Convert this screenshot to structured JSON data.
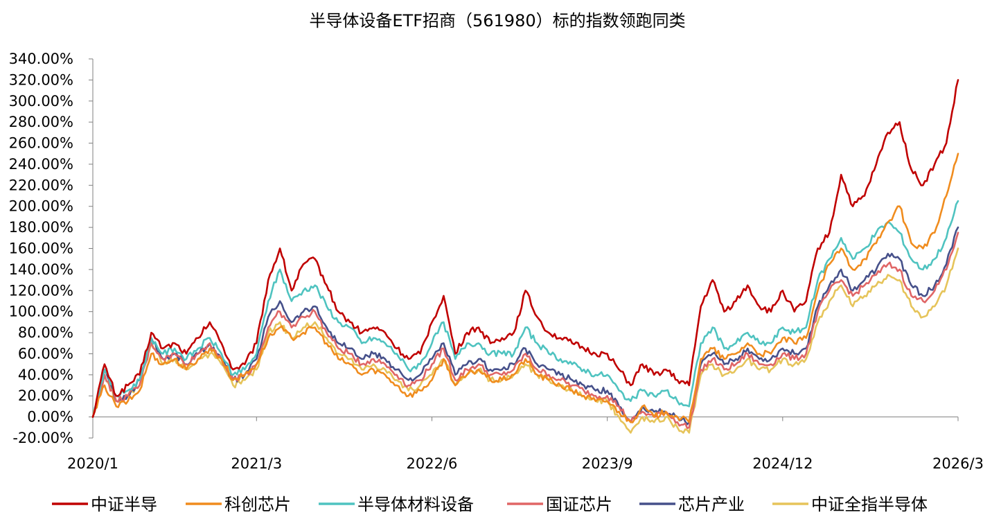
{
  "chart_data": {
    "type": "line",
    "title": "半导体设备ETF招商（561980）标的指数领跑同类",
    "xlabel": "",
    "ylabel": "",
    "ylim": [
      -20,
      340
    ],
    "y_ticks": [
      "-20.00%",
      "0.00%",
      "20.00%",
      "40.00%",
      "60.00%",
      "80.00%",
      "100.00%",
      "120.00%",
      "140.00%",
      "160.00%",
      "180.00%",
      "200.00%",
      "220.00%",
      "240.00%",
      "260.00%",
      "280.00%",
      "300.00%",
      "320.00%",
      "340.00%"
    ],
    "x_ticks": [
      "2020/1",
      "2021/3",
      "2022/6",
      "2023/9",
      "2024/12",
      "2026/3"
    ],
    "x_range": [
      "2020-01",
      "2026-03"
    ],
    "legend_position": "bottom",
    "grid": false,
    "x": [
      "2020-01",
      "2020-02",
      "2020-03",
      "2020-04",
      "2020-05",
      "2020-06",
      "2020-07",
      "2020-08",
      "2020-09",
      "2020-10",
      "2020-11",
      "2020-12",
      "2021-01",
      "2021-02",
      "2021-03",
      "2021-04",
      "2021-05",
      "2021-06",
      "2021-07",
      "2021-08",
      "2021-09",
      "2021-10",
      "2021-11",
      "2021-12",
      "2022-01",
      "2022-02",
      "2022-03",
      "2022-04",
      "2022-05",
      "2022-06",
      "2022-07",
      "2022-08",
      "2022-09",
      "2022-10",
      "2022-11",
      "2022-12",
      "2023-01",
      "2023-02",
      "2023-03",
      "2023-04",
      "2023-05",
      "2023-06",
      "2023-07",
      "2023-08",
      "2023-09",
      "2023-10",
      "2023-11",
      "2023-12",
      "2024-01",
      "2024-02",
      "2024-03",
      "2024-04",
      "2024-05",
      "2024-06",
      "2024-07",
      "2024-08",
      "2024-09",
      "2024-10",
      "2024-11",
      "2024-12",
      "2025-01",
      "2025-02",
      "2025-03",
      "2025-04",
      "2025-05",
      "2025-06",
      "2025-07",
      "2025-08",
      "2025-09",
      "2025-10",
      "2025-11",
      "2025-12",
      "2026-01",
      "2026-02",
      "2026-03"
    ],
    "series": [
      {
        "name": "中证半导",
        "color": "#C00000",
        "values": [
          0,
          50,
          20,
          30,
          40,
          80,
          65,
          70,
          60,
          75,
          90,
          70,
          45,
          50,
          70,
          130,
          160,
          120,
          145,
          150,
          125,
          100,
          90,
          80,
          85,
          80,
          65,
          55,
          60,
          90,
          115,
          60,
          80,
          85,
          70,
          75,
          80,
          120,
          95,
          80,
          75,
          70,
          65,
          60,
          60,
          45,
          30,
          50,
          40,
          45,
          35,
          30,
          105,
          130,
          100,
          110,
          125,
          105,
          100,
          120,
          100,
          110,
          160,
          175,
          230,
          200,
          210,
          240,
          270,
          280,
          235,
          220,
          240,
          260,
          320
        ]
      },
      {
        "name": "科创芯片",
        "color": "#F08C1E",
        "values": [
          0,
          30,
          10,
          15,
          25,
          60,
          50,
          55,
          45,
          55,
          65,
          55,
          35,
          40,
          50,
          75,
          85,
          75,
          80,
          85,
          70,
          55,
          50,
          40,
          45,
          40,
          30,
          20,
          25,
          35,
          55,
          30,
          40,
          45,
          35,
          35,
          40,
          55,
          40,
          35,
          30,
          25,
          20,
          15,
          15,
          5,
          -5,
          10,
          0,
          5,
          0,
          -5,
          55,
          65,
          55,
          60,
          70,
          60,
          60,
          75,
          70,
          75,
          120,
          145,
          160,
          140,
          150,
          165,
          185,
          200,
          165,
          160,
          175,
          210,
          250
        ]
      },
      {
        "name": "半导体材料设备",
        "color": "#4FC3C0",
        "values": [
          0,
          45,
          20,
          25,
          35,
          75,
          60,
          65,
          55,
          65,
          75,
          60,
          40,
          45,
          60,
          110,
          140,
          110,
          120,
          125,
          105,
          90,
          85,
          70,
          75,
          70,
          60,
          45,
          50,
          70,
          90,
          55,
          70,
          70,
          60,
          60,
          60,
          85,
          70,
          60,
          55,
          50,
          45,
          40,
          40,
          25,
          15,
          25,
          20,
          25,
          15,
          10,
          70,
          85,
          65,
          70,
          80,
          70,
          70,
          85,
          80,
          85,
          130,
          150,
          170,
          150,
          160,
          175,
          185,
          175,
          150,
          140,
          150,
          170,
          205
        ]
      },
      {
        "name": "国证芯片",
        "color": "#E06666",
        "values": [
          0,
          40,
          15,
          20,
          30,
          70,
          55,
          60,
          50,
          60,
          70,
          55,
          35,
          40,
          50,
          85,
          100,
          85,
          95,
          100,
          80,
          65,
          60,
          50,
          55,
          50,
          40,
          30,
          35,
          50,
          65,
          35,
          45,
          50,
          40,
          40,
          45,
          60,
          45,
          40,
          35,
          30,
          25,
          20,
          20,
          10,
          -5,
          5,
          0,
          5,
          -5,
          -10,
          45,
          55,
          45,
          50,
          60,
          50,
          50,
          60,
          55,
          60,
          100,
          120,
          130,
          115,
          125,
          135,
          145,
          140,
          115,
          110,
          120,
          140,
          175
        ]
      },
      {
        "name": "芯片产业",
        "color": "#46508A",
        "values": [
          0,
          45,
          15,
          20,
          35,
          75,
          55,
          60,
          50,
          60,
          70,
          55,
          35,
          40,
          55,
          95,
          110,
          90,
          100,
          105,
          85,
          70,
          65,
          55,
          60,
          55,
          45,
          35,
          40,
          55,
          70,
          40,
          50,
          55,
          45,
          45,
          50,
          65,
          50,
          45,
          40,
          35,
          30,
          25,
          25,
          10,
          -5,
          10,
          5,
          5,
          0,
          -5,
          50,
          60,
          50,
          55,
          65,
          55,
          55,
          65,
          60,
          65,
          105,
          125,
          140,
          120,
          130,
          140,
          155,
          150,
          125,
          115,
          125,
          145,
          180
        ]
      },
      {
        "name": "中证全指半导体",
        "color": "#E6C45A",
        "values": [
          0,
          40,
          15,
          20,
          30,
          70,
          50,
          55,
          45,
          55,
          60,
          50,
          30,
          35,
          45,
          80,
          90,
          75,
          85,
          90,
          75,
          60,
          55,
          45,
          50,
          45,
          35,
          25,
          30,
          40,
          55,
          30,
          40,
          45,
          35,
          35,
          40,
          50,
          40,
          35,
          30,
          25,
          20,
          15,
          15,
          0,
          -15,
          0,
          -5,
          0,
          -10,
          -15,
          40,
          50,
          40,
          45,
          55,
          45,
          45,
          55,
          50,
          55,
          90,
          110,
          125,
          105,
          115,
          125,
          135,
          130,
          105,
          95,
          105,
          125,
          160
        ]
      }
    ]
  }
}
